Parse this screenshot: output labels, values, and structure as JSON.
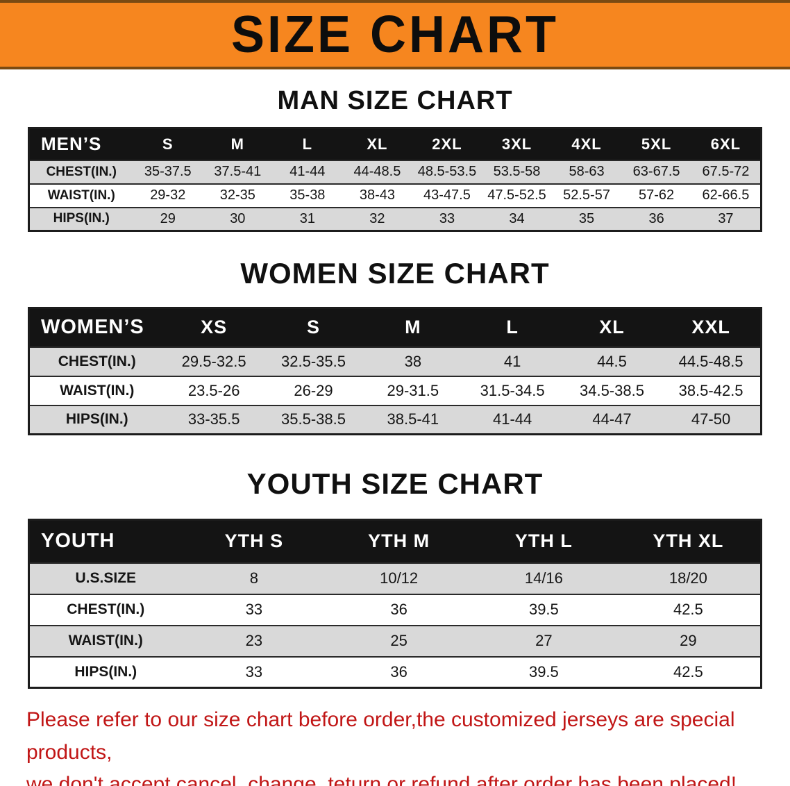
{
  "banner": {
    "title": "SIZE CHART",
    "background_color": "#F6861F",
    "text_color": "#0D0D0D"
  },
  "colors": {
    "table_header_bg": "#141414",
    "table_header_text": "#FFFFFF",
    "row_alt_bg": "#D9D9D9",
    "footer_text": "#C11616"
  },
  "sections": [
    {
      "heading": "MAN SIZE CHART",
      "header_label": "MEN’S",
      "columns": [
        "S",
        "M",
        "L",
        "XL",
        "2XL",
        "3XL",
        "4XL",
        "5XL",
        "6XL"
      ],
      "rows": [
        {
          "label": "CHEST(IN.)",
          "values": [
            "35-37.5",
            "37.5-41",
            "41-44",
            "44-48.5",
            "48.5-53.5",
            "53.5-58",
            "58-63",
            "63-67.5",
            "67.5-72"
          ]
        },
        {
          "label": "WAIST(IN.)",
          "values": [
            "29-32",
            "32-35",
            "35-38",
            "38-43",
            "43-47.5",
            "47.5-52.5",
            "52.5-57",
            "57-62",
            "62-66.5"
          ]
        },
        {
          "label": "HIPS(IN.)",
          "values": [
            "29",
            "30",
            "31",
            "32",
            "33",
            "34",
            "35",
            "36",
            "37"
          ]
        }
      ]
    },
    {
      "heading": "WOMEN SIZE CHART",
      "header_label": "WOMEN’S",
      "columns": [
        "XS",
        "S",
        "M",
        "L",
        "XL",
        "XXL"
      ],
      "rows": [
        {
          "label": "CHEST(IN.)",
          "values": [
            "29.5-32.5",
            "32.5-35.5",
            "38",
            "41",
            "44.5",
            "44.5-48.5"
          ]
        },
        {
          "label": "WAIST(IN.)",
          "values": [
            "23.5-26",
            "26-29",
            "29-31.5",
            "31.5-34.5",
            "34.5-38.5",
            "38.5-42.5"
          ]
        },
        {
          "label": "HIPS(IN.)",
          "values": [
            "33-35.5",
            "35.5-38.5",
            "38.5-41",
            "41-44",
            "44-47",
            "47-50"
          ]
        }
      ]
    },
    {
      "heading": "YOUTH SIZE CHART",
      "header_label": "YOUTH",
      "columns": [
        "YTH S",
        "YTH M",
        "YTH L",
        "YTH XL"
      ],
      "rows": [
        {
          "label": "U.S.SIZE",
          "values": [
            "8",
            "10/12",
            "14/16",
            "18/20"
          ]
        },
        {
          "label": "CHEST(IN.)",
          "values": [
            "33",
            "36",
            "39.5",
            "42.5"
          ]
        },
        {
          "label": "WAIST(IN.)",
          "values": [
            "23",
            "25",
            "27",
            "29"
          ]
        },
        {
          "label": "HIPS(IN.)",
          "values": [
            "33",
            "36",
            "39.5",
            "42.5"
          ]
        }
      ]
    }
  ],
  "footer": {
    "line1": "Please refer to our size chart before order,the customized jerseys are special products,",
    "line2": "we don't accept cancel, change, teturn or refund after order has been placed!"
  }
}
